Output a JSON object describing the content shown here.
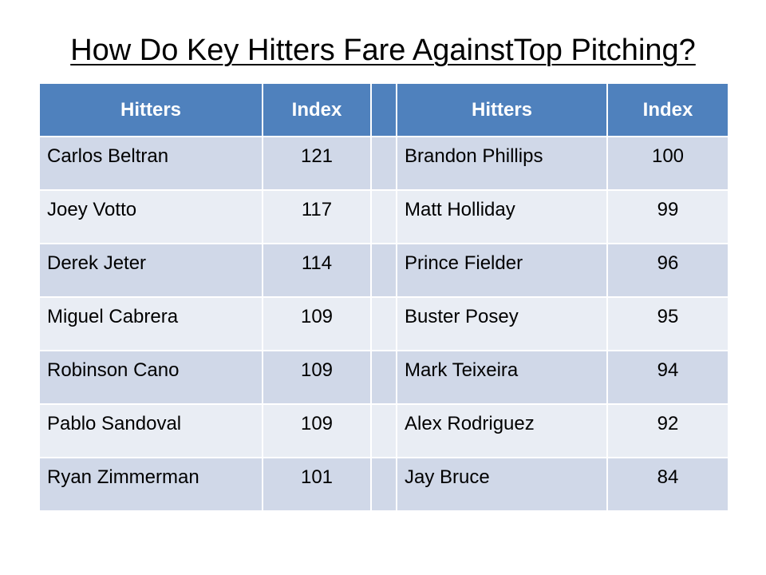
{
  "title": "How Do Key Hitters Fare AgainstTop Pitching?",
  "colors": {
    "header_bg": "#4f81bd",
    "row_band_dark": "#d0d8e8",
    "row_band_light": "#e9edf4",
    "header_text": "#ffffff"
  },
  "table": {
    "headers": {
      "left_name": "Hitters",
      "left_index": "Index",
      "right_name": "Hitters",
      "right_index": "Index"
    },
    "rows": [
      {
        "left_name": "Carlos Beltran",
        "left_index": "121",
        "right_name": "Brandon Phillips",
        "right_index": "100"
      },
      {
        "left_name": "Joey Votto",
        "left_index": "117",
        "right_name": "Matt Holliday",
        "right_index": "99"
      },
      {
        "left_name": "Derek Jeter",
        "left_index": "114",
        "right_name": "Prince Fielder",
        "right_index": "96"
      },
      {
        "left_name": "Miguel Cabrera",
        "left_index": "109",
        "right_name": "Buster Posey",
        "right_index": "95"
      },
      {
        "left_name": "Robinson Cano",
        "left_index": "109",
        "right_name": "Mark Teixeira",
        "right_index": "94"
      },
      {
        "left_name": "Pablo Sandoval",
        "left_index": "109",
        "right_name": "Alex Rodriguez",
        "right_index": "92"
      },
      {
        "left_name": "Ryan Zimmerman",
        "left_index": "101",
        "right_name": "Jay Bruce",
        "right_index": "84"
      }
    ]
  }
}
